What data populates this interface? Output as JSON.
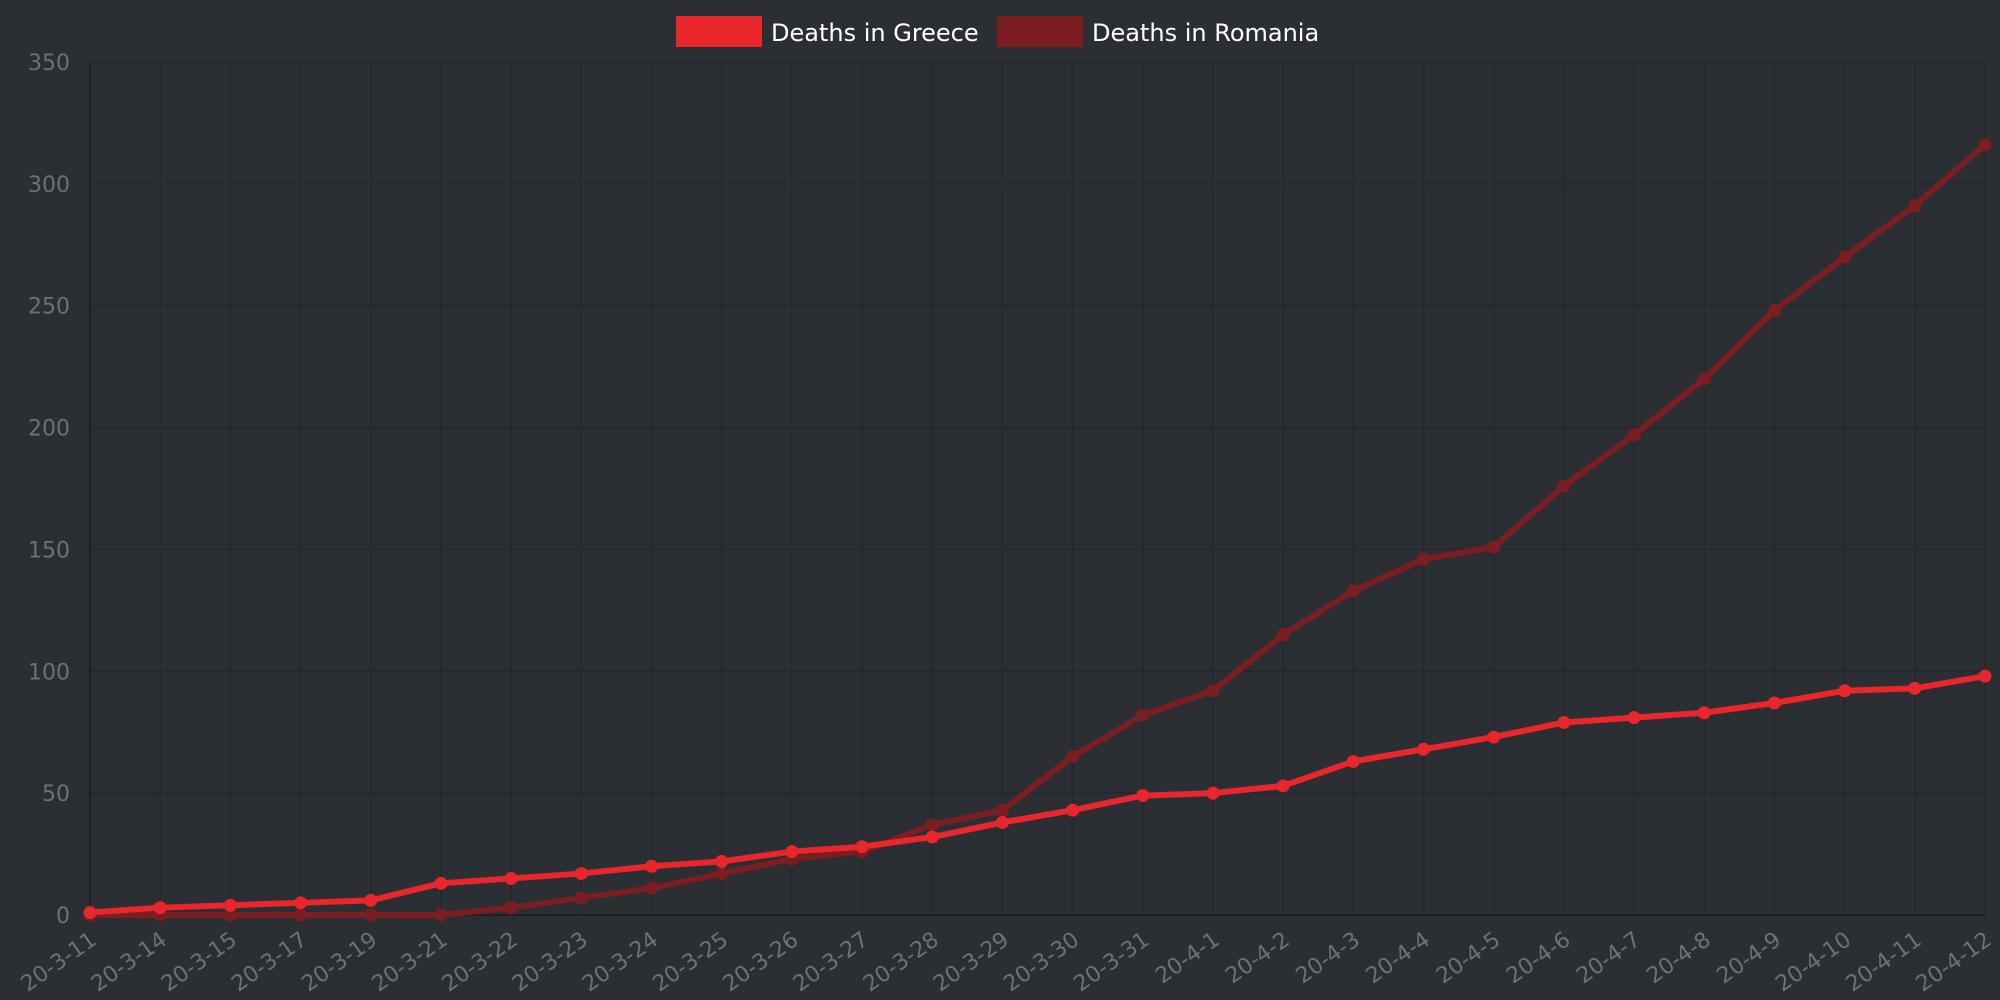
{
  "chart_data": {
    "type": "line",
    "categories": [
      "20-3-11",
      "20-3-14",
      "20-3-15",
      "20-3-17",
      "20-3-19",
      "20-3-21",
      "20-3-22",
      "20-3-23",
      "20-3-24",
      "20-3-25",
      "20-3-26",
      "20-3-27",
      "20-3-28",
      "20-3-29",
      "20-3-30",
      "20-3-31",
      "20-4-1",
      "20-4-2",
      "20-4-3",
      "20-4-4",
      "20-4-5",
      "20-4-6",
      "20-4-7",
      "20-4-8",
      "20-4-9",
      "20-4-10",
      "20-4-11",
      "20-4-12"
    ],
    "series": [
      {
        "name": "Deaths in Greece",
        "color": "#e8262b",
        "values": [
          1,
          3,
          4,
          5,
          6,
          13,
          15,
          17,
          20,
          22,
          26,
          28,
          32,
          38,
          43,
          49,
          50,
          53,
          63,
          68,
          73,
          79,
          81,
          83,
          87,
          92,
          93,
          98
        ]
      },
      {
        "name": "Deaths in Romania",
        "color": "#7a1e21",
        "values": [
          0,
          0,
          0,
          0,
          0,
          0,
          3,
          7,
          11,
          17,
          23,
          26,
          37,
          43,
          65,
          82,
          92,
          115,
          133,
          146,
          151,
          176,
          197,
          220,
          248,
          270,
          291,
          316
        ]
      }
    ],
    "yticks": [
      0,
      50,
      100,
      150,
      200,
      250,
      300,
      350
    ],
    "ylim": [
      0,
      350
    ],
    "grid": true,
    "legend_position": "top-center",
    "background": "#2b2e33",
    "grid_color": "#24272b",
    "tick_color": "#6d7075"
  }
}
